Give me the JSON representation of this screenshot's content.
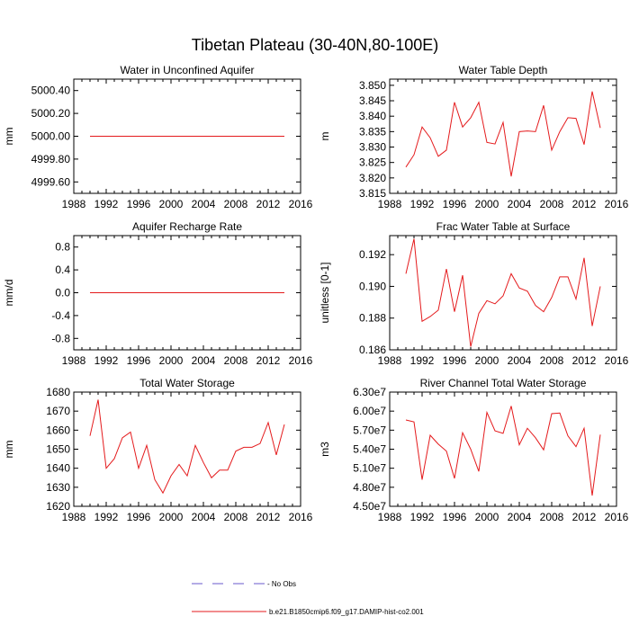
{
  "title": "Tibetan Plateau (30-40N,80-100E)",
  "colors": {
    "series": "#e41a1c",
    "obs": "#6a5acd",
    "axis": "#000000"
  },
  "legend": {
    "no_obs_label": "- No Obs",
    "model_label": "b.e21.B1850cmip6.f09_g17.DAMIP-hist-co2.001"
  },
  "chart_data": [
    {
      "type": "line",
      "title": "Water in Unconfined Aquifer",
      "ylabel": "mm",
      "xlim": [
        1988,
        2016
      ],
      "ylim": [
        4999.5,
        5000.5
      ],
      "xticks": [
        "1988",
        "1992",
        "1996",
        "2000",
        "2004",
        "2008",
        "2012",
        "2016"
      ],
      "yticks": [
        4999.6,
        4999.8,
        5000.0,
        5000.2,
        5000.4
      ],
      "ytick_labels": [
        "4999.60",
        "4999.80",
        "5000.00",
        "5000.20",
        "5000.40"
      ],
      "x": [
        1990,
        1991,
        1992,
        1993,
        1994,
        1995,
        1996,
        1997,
        1998,
        1999,
        2000,
        2001,
        2002,
        2003,
        2004,
        2005,
        2006,
        2007,
        2008,
        2009,
        2010,
        2011,
        2012,
        2013,
        2014
      ],
      "series": [
        {
          "values": [
            5000,
            5000,
            5000,
            5000,
            5000,
            5000,
            5000,
            5000,
            5000,
            5000,
            5000,
            5000,
            5000,
            5000,
            5000,
            5000,
            5000,
            5000,
            5000,
            5000,
            5000,
            5000,
            5000,
            5000,
            5000
          ]
        }
      ]
    },
    {
      "type": "line",
      "title": "Water Table Depth",
      "ylabel": "m",
      "xlim": [
        1988,
        2016
      ],
      "ylim": [
        3.815,
        3.852
      ],
      "xticks": [
        "1988",
        "1992",
        "1996",
        "2000",
        "2004",
        "2008",
        "2012",
        "2016"
      ],
      "yticks": [
        3.815,
        3.82,
        3.825,
        3.83,
        3.835,
        3.84,
        3.845,
        3.85
      ],
      "ytick_labels": [
        "3.815",
        "3.820",
        "3.825",
        "3.830",
        "3.835",
        "3.840",
        "3.845",
        "3.850"
      ],
      "x": [
        1990,
        1991,
        1992,
        1993,
        1994,
        1995,
        1996,
        1997,
        1998,
        1999,
        2000,
        2001,
        2002,
        2003,
        2004,
        2005,
        2006,
        2007,
        2008,
        2009,
        2010,
        2011,
        2012,
        2013,
        2014
      ],
      "series": [
        {
          "values": [
            3.8235,
            3.8275,
            3.8365,
            3.833,
            3.827,
            3.829,
            3.8445,
            3.8365,
            3.8395,
            3.8445,
            3.8315,
            3.831,
            3.838,
            3.8205,
            3.835,
            3.8352,
            3.835,
            3.8435,
            3.829,
            3.835,
            3.8395,
            3.8393,
            3.8308,
            3.848,
            3.8362
          ]
        }
      ]
    },
    {
      "type": "line",
      "title": "Aquifer Recharge Rate",
      "ylabel": "mm/d",
      "xlim": [
        1988,
        2016
      ],
      "ylim": [
        -1.0,
        1.0
      ],
      "xticks": [
        "1988",
        "1992",
        "1996",
        "2000",
        "2004",
        "2008",
        "2012",
        "2016"
      ],
      "yticks": [
        -0.8,
        -0.4,
        0.0,
        0.4,
        0.8
      ],
      "ytick_labels": [
        "-0.8",
        "-0.4",
        "0.0",
        "0.4",
        "0.8"
      ],
      "x": [
        1990,
        1991,
        1992,
        1993,
        1994,
        1995,
        1996,
        1997,
        1998,
        1999,
        2000,
        2001,
        2002,
        2003,
        2004,
        2005,
        2006,
        2007,
        2008,
        2009,
        2010,
        2011,
        2012,
        2013,
        2014
      ],
      "series": [
        {
          "values": [
            0,
            0,
            0,
            0,
            0,
            0,
            0,
            0,
            0,
            0,
            0,
            0,
            0,
            0,
            0,
            0,
            0,
            0,
            0,
            0,
            0,
            0,
            0,
            0,
            0
          ]
        }
      ]
    },
    {
      "type": "line",
      "title": "Frac Water Table at Surface",
      "ylabel": "unitless [0-1]",
      "xlim": [
        1988,
        2016
      ],
      "ylim": [
        0.186,
        0.1932
      ],
      "xticks": [
        "1988",
        "1992",
        "1996",
        "2000",
        "2004",
        "2008",
        "2012",
        "2016"
      ],
      "yticks": [
        0.186,
        0.188,
        0.19,
        0.192
      ],
      "ytick_labels": [
        "0.186",
        "0.188",
        "0.190",
        "0.192"
      ],
      "x": [
        1990,
        1991,
        1992,
        1993,
        1994,
        1995,
        1996,
        1997,
        1998,
        1999,
        2000,
        2001,
        2002,
        2003,
        2004,
        2005,
        2006,
        2007,
        2008,
        2009,
        2010,
        2011,
        2012,
        2013,
        2014
      ],
      "series": [
        {
          "values": [
            0.1908,
            0.193,
            0.1878,
            0.1881,
            0.1885,
            0.1911,
            0.1884,
            0.1907,
            0.1862,
            0.1883,
            0.1891,
            0.1889,
            0.1894,
            0.1908,
            0.1899,
            0.1897,
            0.1888,
            0.1884,
            0.1893,
            0.1906,
            0.1906,
            0.1892,
            0.1918,
            0.1875,
            0.19
          ]
        }
      ]
    },
    {
      "type": "line",
      "title": "Total Water Storage",
      "ylabel": "mm",
      "xlim": [
        1988,
        2016
      ],
      "ylim": [
        1620,
        1680
      ],
      "xticks": [
        "1988",
        "1992",
        "1996",
        "2000",
        "2004",
        "2008",
        "2012",
        "2016"
      ],
      "yticks": [
        1620,
        1630,
        1640,
        1650,
        1660,
        1670,
        1680
      ],
      "ytick_labels": [
        "1620",
        "1630",
        "1640",
        "1650",
        "1660",
        "1670",
        "1680"
      ],
      "x": [
        1990,
        1991,
        1992,
        1993,
        1994,
        1995,
        1996,
        1997,
        1998,
        1999,
        2000,
        2001,
        2002,
        2003,
        2004,
        2005,
        2006,
        2007,
        2008,
        2009,
        2010,
        2011,
        2012,
        2013,
        2014
      ],
      "series": [
        {
          "values": [
            1657,
            1676,
            1640,
            1645,
            1656,
            1659,
            1640,
            1652,
            1634,
            1627,
            1636,
            1642,
            1636,
            1652,
            1643,
            1635,
            1639,
            1639,
            1649,
            1651,
            1651,
            1653,
            1664,
            1647,
            1663
          ]
        }
      ]
    },
    {
      "type": "line",
      "title": "River Channel Total Water Storage",
      "ylabel": "m3",
      "xlim": [
        1988,
        2016
      ],
      "ylim": [
        45000000,
        63000000
      ],
      "xticks": [
        "1988",
        "1992",
        "1996",
        "2000",
        "2004",
        "2008",
        "2012",
        "2016"
      ],
      "yticks": [
        45000000,
        48000000,
        51000000,
        54000000,
        57000000,
        60000000,
        63000000
      ],
      "ytick_labels": [
        "4.50e7",
        "4.80e7",
        "5.10e7",
        "5.40e7",
        "5.70e7",
        "6.00e7",
        "6.30e7"
      ],
      "x": [
        1990,
        1991,
        1992,
        1993,
        1994,
        1995,
        1996,
        1997,
        1998,
        1999,
        2000,
        2001,
        2002,
        2003,
        2004,
        2005,
        2006,
        2007,
        2008,
        2009,
        2010,
        2011,
        2012,
        2013,
        2014
      ],
      "series": [
        {
          "values": [
            58600000,
            58300000,
            49200000,
            56200000,
            54800000,
            53700000,
            49400000,
            56600000,
            54000000,
            50500000,
            59800000,
            56900000,
            56500000,
            60800000,
            54700000,
            57300000,
            55800000,
            53900000,
            59600000,
            59700000,
            56100000,
            54400000,
            57300000,
            46700000,
            56300000
          ]
        }
      ]
    }
  ]
}
